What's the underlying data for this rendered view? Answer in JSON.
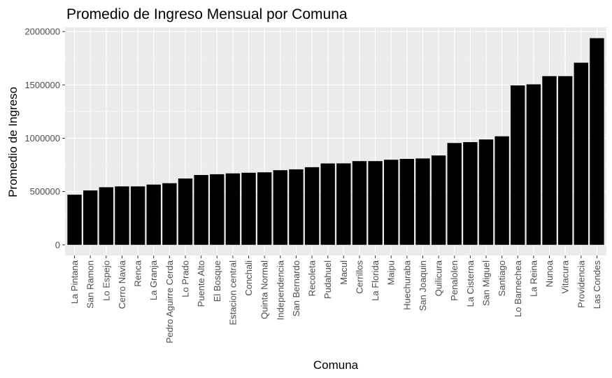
{
  "chart_data": {
    "type": "bar",
    "title": "Promedio de Ingreso Mensual por Comuna",
    "xlabel": "Comuna",
    "ylabel": "Promedio de Ingreso",
    "categories": [
      "La Pintana",
      "San Ramon",
      "Lo Espejo",
      "Cerro Navia",
      "Renca",
      "La Granja",
      "Pedro Aguirre Cerda",
      "Lo Prado",
      "Puente Alto",
      "El Bosque",
      "Estacion central",
      "Conchali",
      "Quinta Normal",
      "Independencia",
      "San Bernardo",
      "Recoleta",
      "Pudahuel",
      "Macul",
      "Cerrillos",
      "La Florida",
      "Maipu",
      "Huechuraba",
      "San Joaquin",
      "Quilicura",
      "Penalolen",
      "La Cisterna",
      "San Miguel",
      "Santiago",
      "Lo Barnechea",
      "La Reina",
      "Nunoa",
      "Vitacura",
      "Providencia",
      "Las Condes"
    ],
    "values": [
      470000,
      510000,
      540000,
      548000,
      548000,
      565000,
      578000,
      622000,
      655000,
      662000,
      670000,
      676000,
      680000,
      700000,
      708000,
      728000,
      763000,
      764000,
      785000,
      785000,
      798000,
      806000,
      810000,
      838000,
      955000,
      963000,
      988000,
      1018000,
      1495000,
      1505000,
      1582000,
      1582000,
      1708000,
      1938000
    ],
    "yticks": [
      0,
      500000,
      1000000,
      1500000,
      2000000
    ],
    "ytick_labels": [
      "0",
      "500000",
      "1000000",
      "1500000",
      "2000000"
    ],
    "ylim": [
      -100000,
      2040000
    ],
    "grid": true,
    "colors": {
      "bar": "#000000",
      "panel": "#ebebeb",
      "grid_major": "#ffffff",
      "grid_minor": "#f5f5f5"
    }
  }
}
